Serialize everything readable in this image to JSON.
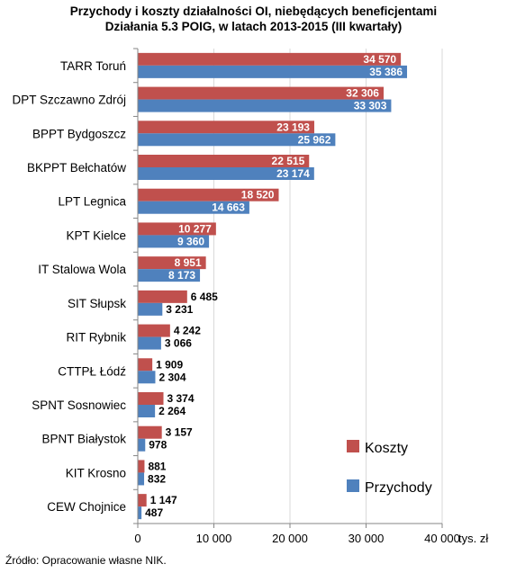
{
  "chart_data": {
    "type": "bar",
    "orientation": "horizontal",
    "title": "Przychody i koszty działalności OI,  niebędących beneficjentami",
    "subtitle": "Działania 5.3 POIG, w latach 2013-2015 (III kwartały)",
    "xlabel": "",
    "ylabel": "",
    "unit": "tys. zł",
    "xlim": [
      0,
      40000
    ],
    "x_ticks": [
      "0",
      "10 000",
      "20 000",
      "30 000",
      "40 000"
    ],
    "grid": true,
    "legend_position": "bottom-right",
    "categories": [
      "TARR Toruń",
      "DPT Szczawno Zdrój",
      "BPPT Bydgoszcz",
      "BKPPT Bełchatów",
      "LPT Legnica",
      "KPT Kielce",
      "IT Stalowa Wola",
      "SIT Słupsk",
      "RIT Rybnik",
      "CTTPŁ Łódź",
      "SPNT Sosnowiec",
      "BPNT Białystok",
      "KIT Krosno",
      "CEW Chojnice"
    ],
    "series": [
      {
        "name": "Koszty",
        "color": "#c0504d",
        "values": [
          34570,
          32306,
          23193,
          22515,
          18520,
          10277,
          8951,
          6485,
          4242,
          1909,
          3374,
          3157,
          881,
          1147
        ],
        "labels": [
          "34 570",
          "32 306",
          "23 193",
          "22 515",
          "18 520",
          "10 277",
          "8 951",
          "6 485",
          "4 242",
          "1 909",
          "3 374",
          "3 157",
          "881",
          "1 147"
        ]
      },
      {
        "name": "Przychody",
        "color": "#4f81bd",
        "values": [
          35386,
          33303,
          25962,
          23174,
          14663,
          9360,
          8173,
          3231,
          3066,
          2304,
          2264,
          978,
          832,
          487
        ],
        "labels": [
          "35 386",
          "33 303",
          "25 962",
          "23 174",
          "14 663",
          "9 360",
          "8 173",
          "3 231",
          "3 066",
          "2 304",
          "2 264",
          "978",
          "832",
          "487"
        ]
      }
    ]
  },
  "source_note": "Źródło: Opracowanie własne NIK."
}
